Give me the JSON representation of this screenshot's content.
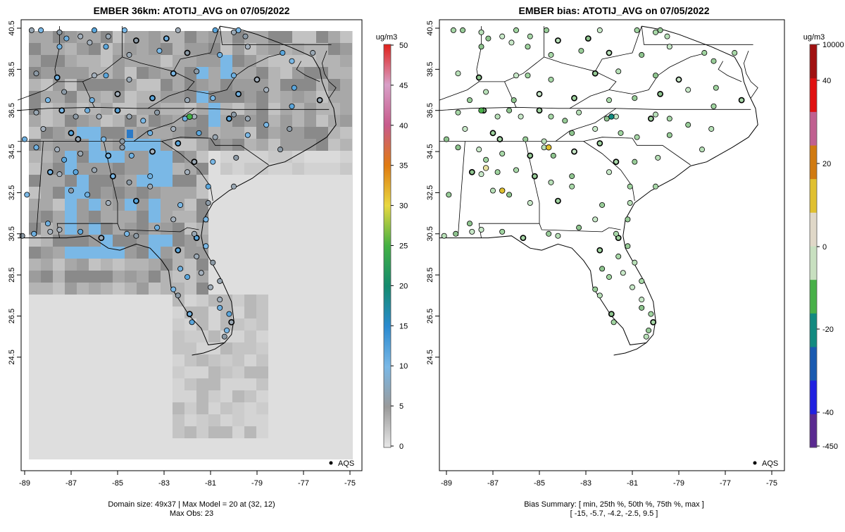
{
  "panels": [
    {
      "title": "EMBER 36km: ATOTIJ_AVG on 07/05/2022",
      "colorbar_unit": "ug/m3",
      "colorbar_ticks": [
        "0",
        "5",
        "10",
        "15",
        "20",
        "25",
        "30",
        "35",
        "40",
        "45",
        "50"
      ],
      "legend_label": "AQS",
      "footer_line1": "Domain size: 49x37 | Max Model = 20 at (32, 12)",
      "footer_line2": "Max Obs: 23"
    },
    {
      "title": "EMBER bias: ATOTIJ_AVG on 07/05/2022",
      "colorbar_unit": "ug/m3",
      "colorbar_ticks": [
        "10000",
        "40",
        "20",
        "0",
        "-20",
        "-40",
        "-450"
      ],
      "legend_label": "AQS",
      "footer_line1": "Bias Summary: [ min, 25th %, 50th %, 75th %, max ]",
      "footer_line2": "[ -15,  -5.7,  -4.2,  -2.5,  9.5 ]"
    }
  ],
  "axes": {
    "x_ticks": [
      "-89",
      "-87",
      "-85",
      "-83",
      "-81",
      "-79",
      "-77",
      "-75"
    ],
    "y_ticks": [
      "40.5",
      "38.5",
      "36.5",
      "34.5",
      "32.5",
      "30.5",
      "28.5",
      "26.5",
      "24.5"
    ]
  },
  "colors": {
    "conc_scale": [
      "#e8e8e8",
      "#9a9a9a",
      "#7ab8e6",
      "#2a8ad0",
      "#138a6e",
      "#43b043",
      "#e8d840",
      "#e07a10",
      "#c85a8c",
      "#d8a0c8",
      "#e0201a"
    ],
    "bias_scale": [
      "#5a2a90",
      "#2020e0",
      "#1a5ab0",
      "#128a80",
      "#48b048",
      "#c8e0c0",
      "#e0d8c8",
      "#e0c030",
      "#d07a10",
      "#c06090",
      "#e01010",
      "#a01010"
    ],
    "obs_point_bias": "#a8d8a8"
  }
}
